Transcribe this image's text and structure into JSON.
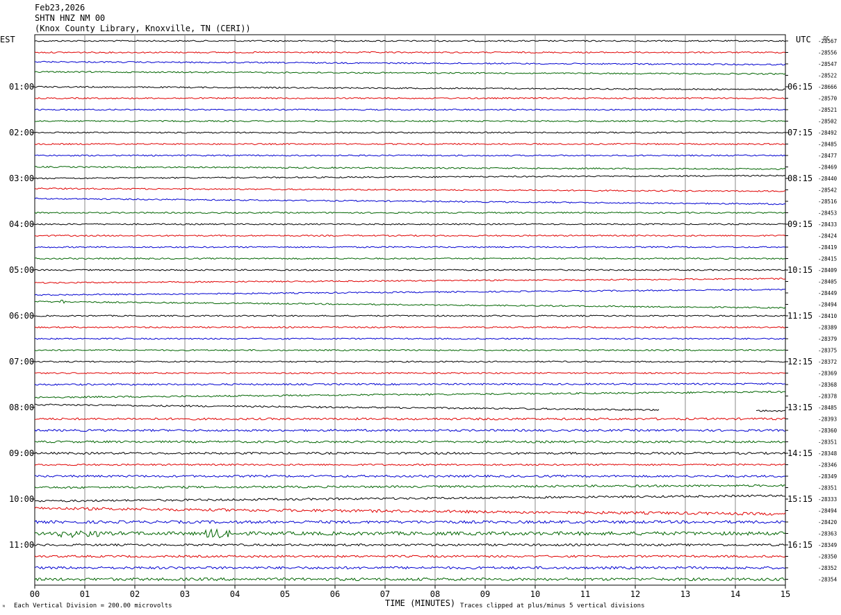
{
  "header": {
    "date": "Feb23,2026",
    "station": "SHTN HNZ NM 00",
    "location": "(Knox County Library, Knoxville, TN (CERI))"
  },
  "left_zone_label": "EST",
  "right_zone_label": "UTC",
  "dc_label": "DC",
  "footer": {
    "x_title": "TIME (MINUTES)",
    "division_note": "Each Vertical Division =  200.00 microvolts",
    "clip_note": "Traces clipped at plus/minus 5 vertical divisions",
    "corner_mark": "ᴺ"
  },
  "colors": {
    "cycle": [
      "#000000",
      "#e00000",
      "#0000d0",
      "#006400"
    ],
    "grid": "#888888"
  },
  "chart_data": {
    "type": "line",
    "subtype": "helicorder",
    "x_ticks": [
      "00",
      "01",
      "02",
      "03",
      "04",
      "05",
      "06",
      "07",
      "08",
      "09",
      "10",
      "11",
      "12",
      "13",
      "14",
      "15"
    ],
    "xlim": [
      0,
      15
    ],
    "xlabel": "TIME (MINUTES)",
    "left_hour_labels": [
      "01:00",
      "02:00",
      "03:00",
      "04:00",
      "05:00",
      "06:00",
      "07:00",
      "08:00",
      "09:00",
      "10:00",
      "11:00"
    ],
    "right_hour_labels": [
      "06:15",
      "07:15",
      "08:15",
      "09:15",
      "10:15",
      "11:15",
      "12:15",
      "13:15",
      "14:15",
      "15:15",
      "16:15"
    ],
    "dc_offsets": [
      "-28567",
      "-28556",
      "-28547",
      "-28522",
      "-28666",
      "-28570",
      "-28521",
      "-28502",
      "-28492",
      "-28485",
      "-28477",
      "-28469",
      "-28440",
      "-28542",
      "-28516",
      "-28453",
      "-28433",
      "-28424",
      "-28419",
      "-28415",
      "-28409",
      "-28405",
      "-28449",
      "-28494",
      "-28410",
      "-28389",
      "-28379",
      "-28375",
      "-28372",
      "-28369",
      "-28368",
      "-28378",
      "-28485",
      "-28393",
      "-28360",
      "-28351",
      "-28348",
      "-28346",
      "-28349",
      "-28351",
      "-28333",
      "-28494",
      "-28420",
      "-28363",
      "-28349",
      "-28350",
      "-28352",
      "-28354"
    ],
    "trace_drift": [
      [
        0,
        0
      ],
      [
        0,
        0
      ],
      [
        -3,
        1
      ],
      [
        -5,
        -2
      ],
      [
        0,
        4
      ],
      [
        0,
        0
      ],
      [
        0,
        0
      ],
      [
        0,
        0
      ],
      [
        0,
        0
      ],
      [
        0,
        0
      ],
      [
        0,
        0
      ],
      [
        0,
        3
      ],
      [
        0,
        -4
      ],
      [
        -2,
        2
      ],
      [
        -4,
        4
      ],
      [
        0,
        0
      ],
      [
        0,
        0
      ],
      [
        0,
        0
      ],
      [
        0,
        0
      ],
      [
        0,
        0
      ],
      [
        0,
        0
      ],
      [
        2,
        -4
      ],
      [
        3,
        -5
      ],
      [
        -4,
        5
      ],
      [
        0,
        0
      ],
      [
        0,
        0
      ],
      [
        0,
        0
      ],
      [
        0,
        0
      ],
      [
        0,
        0
      ],
      [
        0,
        0
      ],
      [
        0,
        -1
      ],
      [
        2,
        -6
      ],
      [
        -4,
        5
      ],
      [
        0,
        0
      ],
      [
        0,
        0
      ],
      [
        0,
        0
      ],
      [
        0,
        0
      ],
      [
        0,
        0
      ],
      [
        0,
        0
      ],
      [
        0,
        -3
      ],
      [
        3,
        -5
      ],
      [
        -3,
        5
      ],
      [
        0,
        0
      ],
      [
        0,
        0
      ],
      [
        0,
        0
      ],
      [
        0,
        0
      ],
      [
        0,
        0
      ],
      [
        0,
        0
      ]
    ],
    "trace_noise": [
      1,
      1,
      1,
      1,
      1,
      1,
      1,
      1,
      1,
      1,
      1,
      1,
      1,
      1,
      1,
      1,
      1,
      1,
      1,
      1,
      1,
      1,
      1,
      1,
      1,
      1,
      1,
      1,
      1,
      1,
      1.2,
      1.2,
      1.2,
      1.5,
      1.5,
      1.5,
      1.5,
      1.2,
      1.5,
      1.5,
      1.5,
      2,
      2,
      2.5,
      1.5,
      1.5,
      1.8,
      2
    ],
    "gaps": [
      {
        "trace": 32,
        "from_min": 12.5,
        "to_min": 14.4
      }
    ],
    "events": [
      {
        "trace": 43,
        "from_min": 0.4,
        "to_min": 1.3,
        "amplitude": 5
      },
      {
        "trace": 43,
        "from_min": 3.4,
        "to_min": 3.9,
        "amplitude": 7
      },
      {
        "trace": 23,
        "from_min": 0.5,
        "to_min": 0.6,
        "amplitude": 3
      }
    ]
  }
}
